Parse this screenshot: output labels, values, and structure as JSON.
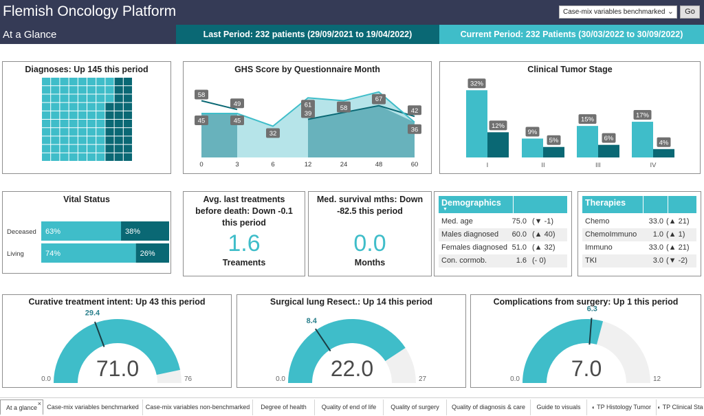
{
  "header": {
    "app_title": "Flemish Oncology Platform",
    "page_select": {
      "value": "Case-mix variables benchmarked"
    },
    "go_label": "Go",
    "page_name": "At a Glance",
    "last_period": "Last Period: 232 patients (29/09/2021 to 19/04/2022)",
    "current_period": "Current Period: 232 Patients (30/03/2022 to 30/09/2022)"
  },
  "colors": {
    "dark_teal": "#0a6874",
    "light_teal": "#3fbdc9",
    "pale_teal": "#b6e4e9",
    "navy": "#353b56",
    "gauge_track": "#f0f0f0"
  },
  "diagnoses": {
    "title": "Diagnoses: Up 145 this period",
    "current_count": 232,
    "change": 145
  },
  "ghs": {
    "title": "GHS Score by Questionnaire Month",
    "chart_data": {
      "type": "area",
      "title": "GHS Score by Questionnaire Month",
      "categories": [
        "0",
        "3",
        "6",
        "12",
        "24",
        "48",
        "60"
      ],
      "series": [
        {
          "values": [
            58,
            49,
            null,
            39,
            46,
            53,
            42
          ]
        },
        {
          "values": [
            45,
            45,
            32,
            61,
            58,
            67,
            36
          ]
        }
      ],
      "ylim": [
        0,
        90
      ],
      "grid": false
    }
  },
  "tumor_stage": {
    "title": "Clinical Tumor Stage",
    "chart_data": {
      "type": "bar",
      "title": "Clinical Tumor Stage",
      "categories": [
        "I",
        "II",
        "III",
        "IV"
      ],
      "series": [
        {
          "values": [
            32,
            9,
            15,
            17
          ],
          "labels": [
            "32%",
            "9%",
            "15%",
            "17%"
          ]
        },
        {
          "values": [
            12,
            5,
            6,
            4
          ],
          "labels": [
            "12%",
            "5%",
            "6%",
            "4%"
          ]
        }
      ],
      "ylim": [
        0,
        36
      ]
    }
  },
  "vital_status": {
    "title": "Vital Status",
    "chart_data": {
      "type": "bar",
      "title": "Vital Status",
      "categories": [
        "Deceased",
        "Living"
      ],
      "series": [
        {
          "values": [
            63,
            74
          ],
          "labels": [
            "63%",
            "74%"
          ]
        },
        {
          "values": [
            38,
            26
          ],
          "labels": [
            "38%",
            "26%"
          ]
        }
      ]
    }
  },
  "kpi_treatments": {
    "title": "Avg. last treatments before death: Down -0.1 this period",
    "value": "1.6",
    "unit": "Treaments"
  },
  "kpi_survival": {
    "title": "Med. survival mths: Down -82.5 this period",
    "value": "0.0",
    "unit": "Months"
  },
  "demographics": {
    "title": "Demographics",
    "rows": [
      {
        "label": "Med. age",
        "value": "75.0",
        "change": "(▼ -1)"
      },
      {
        "label": "Males diagnosed",
        "value": "60.0",
        "change": "(▲ 40)"
      },
      {
        "label": "Females diagnosed",
        "value": "51.0",
        "change": "(▲ 32)"
      },
      {
        "label": "Con. cormob.",
        "value": "1.6",
        "change": "(- 0)"
      }
    ]
  },
  "therapies": {
    "title": "Therapies",
    "rows": [
      {
        "label": "Chemo",
        "value": "33.0",
        "change": "(▲ 21)"
      },
      {
        "label": "ChemoImmuno",
        "value": "1.0",
        "change": "(▲ 1)"
      },
      {
        "label": "Immuno",
        "value": "33.0",
        "change": "(▲ 21)"
      },
      {
        "label": "TKI",
        "value": "3.0",
        "change": "(▼ -2)"
      }
    ]
  },
  "gauges": [
    {
      "title": "Curative treatment intent: Up 43 this period",
      "value": 71.0,
      "value_label": "71.0",
      "target": 29.4,
      "target_label": "29.4",
      "min_label": "0.0",
      "max": 76,
      "max_label": "76"
    },
    {
      "title": "Surgical lung Resect.: Up 14 this period",
      "value": 22.0,
      "value_label": "22.0",
      "target": 8.4,
      "target_label": "8.4",
      "min_label": "0.0",
      "max": 27,
      "max_label": "27"
    },
    {
      "title": "Complications from surgery: Up 1 this period",
      "value": 7.0,
      "value_label": "7.0",
      "target": 6.3,
      "target_label": "6.3",
      "min_label": "0.0",
      "max": 12,
      "max_label": "12"
    }
  ],
  "tabs": [
    {
      "label": "At a glance",
      "active": true
    },
    {
      "label": "Case-mix variables benchmarked"
    },
    {
      "label": "Case-mix variables non-benchmarked"
    },
    {
      "label": "Degree of health"
    },
    {
      "label": "Quality of end of life"
    },
    {
      "label": "Quality of surgery"
    },
    {
      "label": "Quality of diagnosis & care"
    },
    {
      "label": "Guide to visuals"
    },
    {
      "label": "TP Histology Tumor",
      "icon": "hidden-eye-icon"
    },
    {
      "label": "TP Clinical Sta",
      "icon": "hidden-eye-icon"
    }
  ]
}
